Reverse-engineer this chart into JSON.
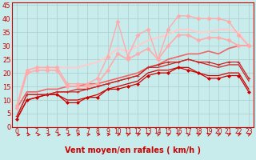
{
  "xlabel": "Vent moyen/en rafales ( km/h )",
  "xlim": [
    -0.5,
    23.5
  ],
  "ylim": [
    0,
    46
  ],
  "yticks": [
    0,
    5,
    10,
    15,
    20,
    25,
    30,
    35,
    40,
    45
  ],
  "xticks": [
    0,
    1,
    2,
    3,
    4,
    5,
    6,
    7,
    8,
    9,
    10,
    11,
    12,
    13,
    14,
    15,
    16,
    17,
    18,
    19,
    20,
    21,
    22,
    23
  ],
  "bg_color": "#c8ecec",
  "grid_color": "#aacccc",
  "lines": [
    {
      "x": [
        0,
        1,
        2,
        3,
        4,
        5,
        6,
        7,
        8,
        9,
        10,
        11,
        12,
        13,
        14,
        15,
        16,
        17,
        18,
        19,
        20,
        21,
        22,
        23
      ],
      "y": [
        3,
        10,
        11,
        12,
        12,
        9,
        9,
        11,
        11,
        14,
        14,
        15,
        16,
        19,
        20,
        20,
        22,
        21,
        20,
        18,
        18,
        19,
        19,
        13
      ],
      "color": "#cc0000",
      "lw": 0.9,
      "marker": "D",
      "ms": 2.0,
      "zorder": 5
    },
    {
      "x": [
        0,
        1,
        2,
        3,
        4,
        5,
        6,
        7,
        8,
        9,
        10,
        11,
        12,
        13,
        14,
        15,
        16,
        17,
        18,
        19,
        20,
        21,
        22,
        23
      ],
      "y": [
        3,
        10,
        11,
        12,
        12,
        10,
        10,
        11,
        12,
        14,
        15,
        16,
        17,
        20,
        21,
        21,
        22,
        22,
        20,
        19,
        19,
        20,
        20,
        14
      ],
      "color": "#cc0000",
      "lw": 0.9,
      "marker": null,
      "ms": 0,
      "zorder": 4
    },
    {
      "x": [
        0,
        1,
        2,
        3,
        4,
        5,
        6,
        7,
        8,
        9,
        10,
        11,
        12,
        13,
        14,
        15,
        16,
        17,
        18,
        19,
        20,
        21,
        22,
        23
      ],
      "y": [
        4,
        12,
        12,
        12,
        13,
        13,
        13,
        14,
        15,
        16,
        17,
        18,
        19,
        22,
        23,
        24,
        24,
        25,
        24,
        24,
        23,
        24,
        24,
        18
      ],
      "color": "#cc2222",
      "lw": 0.9,
      "marker": "+",
      "ms": 3.0,
      "zorder": 5
    },
    {
      "x": [
        0,
        1,
        2,
        3,
        4,
        5,
        6,
        7,
        8,
        9,
        10,
        11,
        12,
        13,
        14,
        15,
        16,
        17,
        18,
        19,
        20,
        21,
        22,
        23
      ],
      "y": [
        4,
        12,
        12,
        12,
        13,
        13,
        14,
        14,
        15,
        16,
        17,
        18,
        19,
        22,
        22,
        23,
        24,
        25,
        24,
        23,
        22,
        23,
        23,
        17
      ],
      "color": "#cc2222",
      "lw": 0.9,
      "marker": null,
      "ms": 0,
      "zorder": 4
    },
    {
      "x": [
        0,
        1,
        2,
        3,
        4,
        5,
        6,
        7,
        8,
        9,
        10,
        11,
        12,
        13,
        14,
        15,
        16,
        17,
        18,
        19,
        20,
        21,
        22,
        23
      ],
      "y": [
        7,
        13,
        13,
        14,
        14,
        15,
        15,
        16,
        16,
        17,
        18,
        19,
        20,
        22,
        23,
        25,
        26,
        27,
        27,
        28,
        27,
        29,
        30,
        30
      ],
      "color": "#ee6666",
      "lw": 1.2,
      "marker": null,
      "ms": 0,
      "zorder": 3
    },
    {
      "x": [
        0,
        1,
        2,
        3,
        4,
        5,
        6,
        7,
        8,
        9,
        10,
        11,
        12,
        13,
        14,
        15,
        16,
        17,
        18,
        19,
        20,
        21,
        22,
        23
      ],
      "y": [
        7,
        20,
        21,
        21,
        21,
        15,
        15,
        15,
        16,
        21,
        27,
        25,
        27,
        29,
        25,
        30,
        34,
        34,
        32,
        33,
        33,
        32,
        30,
        30
      ],
      "color": "#ffaaaa",
      "lw": 1.2,
      "marker": "D",
      "ms": 2.5,
      "zorder": 3
    },
    {
      "x": [
        0,
        1,
        2,
        3,
        4,
        5,
        6,
        7,
        8,
        9,
        10,
        11,
        12,
        13,
        14,
        15,
        16,
        17,
        18,
        19,
        20,
        21,
        22,
        23
      ],
      "y": [
        8,
        21,
        22,
        22,
        22,
        22,
        22,
        23,
        24,
        26,
        29,
        28,
        30,
        32,
        33,
        34,
        36,
        36,
        35,
        35,
        36,
        36,
        35,
        30
      ],
      "color": "#ffcccc",
      "lw": 1.5,
      "marker": null,
      "ms": 0,
      "zorder": 2
    },
    {
      "x": [
        0,
        1,
        2,
        3,
        4,
        5,
        6,
        7,
        8,
        9,
        10,
        11,
        12,
        13,
        14,
        15,
        16,
        17,
        18,
        19,
        20,
        21,
        22,
        23
      ],
      "y": [
        8,
        21,
        22,
        22,
        22,
        16,
        16,
        16,
        18,
        26,
        39,
        26,
        34,
        36,
        25,
        36,
        41,
        41,
        40,
        40,
        40,
        39,
        34,
        30
      ],
      "color": "#ffaaaa",
      "lw": 1.0,
      "marker": "D",
      "ms": 2.5,
      "zorder": 3
    }
  ],
  "xlabel_color": "#cc0000",
  "tick_color": "#cc0000",
  "xlabel_fontsize": 7.0,
  "tick_fontsize_x": 5.5,
  "tick_fontsize_y": 6.0
}
